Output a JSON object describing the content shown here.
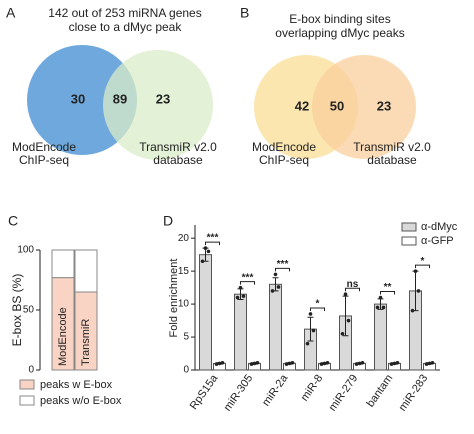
{
  "chart_data": [
    {
      "type": "venn",
      "panel": "A",
      "title": [
        "142 out of 253 miRNA genes",
        "close to a dMyc peak"
      ],
      "sets": [
        {
          "name": [
            "ModEncode",
            "ChIP-seq"
          ],
          "color": "#6fa8dc",
          "value": 30
        },
        {
          "name": [
            "TransmiR v2.0",
            "database"
          ],
          "color": "#d9ecc8",
          "value": 23
        }
      ],
      "overlap": 89
    },
    {
      "type": "venn",
      "panel": "B",
      "title": [
        "E-box binding sites",
        "overlapping dMyc peaks"
      ],
      "sets": [
        {
          "name": [
            "ModEncode",
            "ChIP-seq"
          ],
          "color": "#fbe6b0",
          "value": 42
        },
        {
          "name": [
            "TransmiR v2.0",
            "database"
          ],
          "color": "#f9cf9c",
          "value": 23
        }
      ],
      "overlap": 50
    },
    {
      "type": "stacked_bar",
      "panel": "C",
      "ylabel": "E-box BS (%)",
      "categories": [
        "ModEncode",
        "TransmiR"
      ],
      "series": [
        {
          "name": "peaks w E-box",
          "color": "#f9d3c3",
          "values": [
            77,
            65
          ]
        },
        {
          "name": "peaks w/o E-box",
          "color": "#ffffff",
          "values": [
            23,
            35
          ]
        }
      ],
      "ylim": [
        0,
        100
      ],
      "yticks": [
        0,
        50,
        100
      ]
    },
    {
      "type": "grouped_bar",
      "panel": "D",
      "ylabel": "Fold enrichment",
      "categories": [
        "RpS15a",
        "miR-305",
        "miR-2a",
        "miR-8",
        "miR-279",
        "bantam",
        "miR-283"
      ],
      "series": [
        {
          "name": "α-dMyc",
          "color": "#d9d9d9",
          "values": [
            17.5,
            11.5,
            13,
            6.2,
            8.2,
            10,
            12
          ],
          "errors": [
            1,
            0.8,
            1,
            1.8,
            3,
            0.8,
            3
          ],
          "points": [
            [
              16.5,
              18.5,
              18
            ],
            [
              11,
              12.5,
              11.2
            ],
            [
              12,
              14.5,
              12.6
            ],
            [
              4,
              8.5,
              6
            ],
            [
              5.5,
              11.5,
              7.5
            ],
            [
              9.5,
              11,
              9.5
            ],
            [
              9,
              15,
              12
            ]
          ]
        },
        {
          "name": "α-GFP",
          "color": "#ffffff",
          "values": [
            1,
            1,
            1,
            1,
            1,
            1,
            1
          ],
          "errors": [
            0.1,
            0.1,
            0.1,
            0.1,
            0.1,
            0.1,
            0.1
          ],
          "points": [
            [
              0.9,
              1,
              1.1
            ],
            [
              0.9,
              1,
              1.1
            ],
            [
              0.9,
              1,
              1.1
            ],
            [
              0.9,
              1,
              1.1
            ],
            [
              0.9,
              1,
              1.1
            ],
            [
              0.9,
              1,
              1.1
            ],
            [
              0.9,
              1,
              1.1
            ]
          ]
        }
      ],
      "significance": [
        "***",
        "***",
        "***",
        "*",
        "ns",
        "**",
        "*"
      ],
      "ylim": [
        0,
        22
      ],
      "yticks": [
        0,
        5,
        10,
        15,
        20
      ]
    }
  ]
}
